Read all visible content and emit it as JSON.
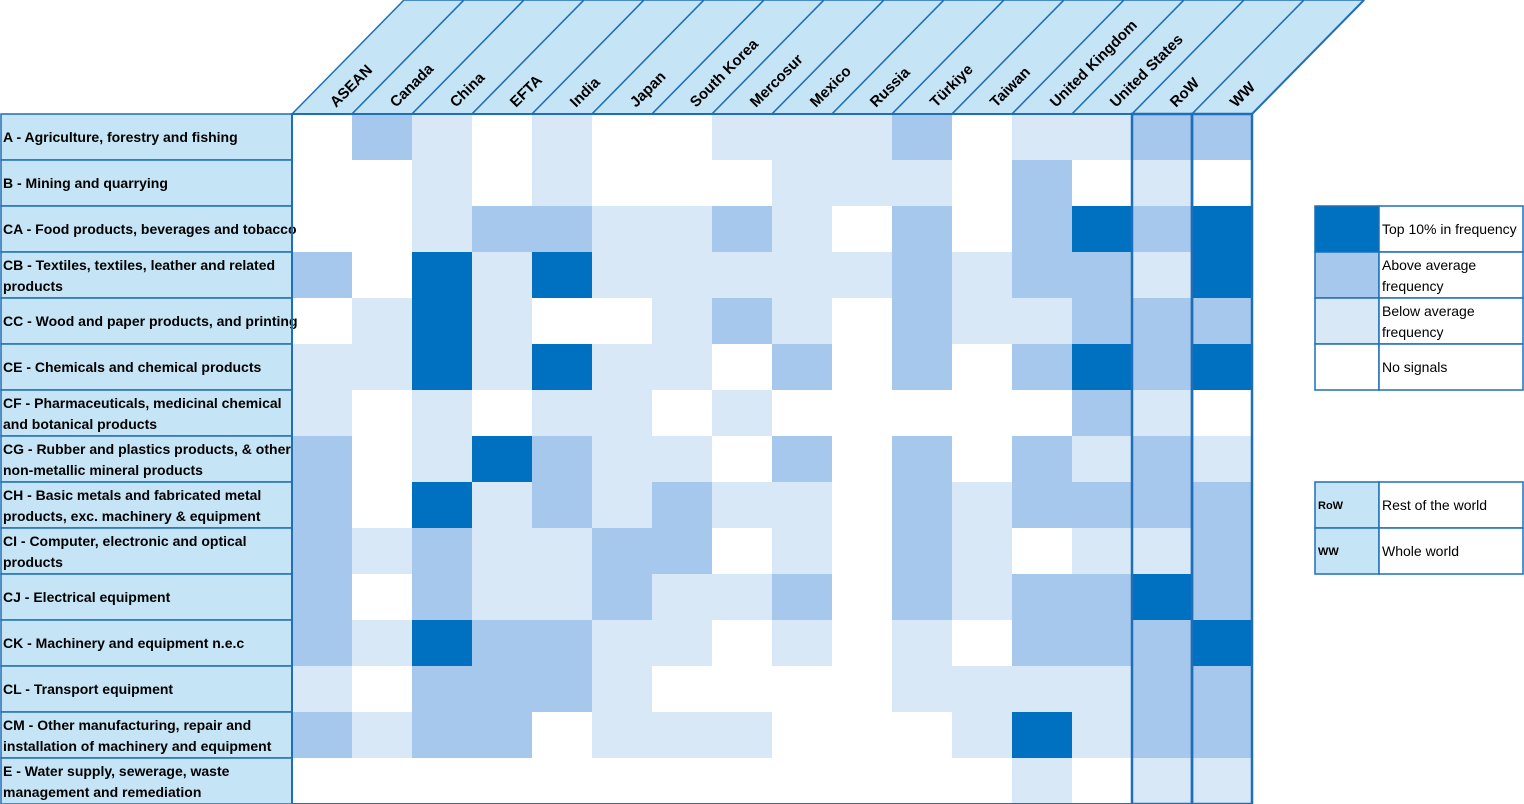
{
  "chart_data": {
    "type": "heatmap",
    "columns": [
      "ASEAN",
      "Canada",
      "China",
      "EFTA",
      "India",
      "Japan",
      "South Korea",
      "Mercosur",
      "Mexico",
      "Russia",
      "Türkiye",
      "Taiwan",
      "United Kingdom",
      "United States",
      "RoW",
      "WW"
    ],
    "rows": [
      {
        "label": [
          "A - Agriculture, forestry and fishing"
        ],
        "values": [
          0,
          2,
          1,
          0,
          1,
          0,
          0,
          1,
          1,
          1,
          2,
          0,
          1,
          1,
          2,
          2
        ]
      },
      {
        "label": [
          "B - Mining and quarrying"
        ],
        "values": [
          0,
          0,
          1,
          0,
          1,
          0,
          0,
          0,
          1,
          1,
          1,
          0,
          2,
          0,
          1,
          0
        ]
      },
      {
        "label": [
          "CA - Food products, beverages and tobacco"
        ],
        "values": [
          0,
          0,
          1,
          2,
          2,
          1,
          1,
          2,
          1,
          0,
          2,
          0,
          2,
          3,
          2,
          3
        ]
      },
      {
        "label": [
          "CB - Textiles, textiles, leather and related",
          "products"
        ],
        "values": [
          2,
          0,
          3,
          1,
          3,
          1,
          1,
          1,
          1,
          1,
          2,
          1,
          2,
          2,
          1,
          3
        ]
      },
      {
        "label": [
          "CC - Wood and paper products, and printing"
        ],
        "values": [
          0,
          1,
          3,
          1,
          0,
          0,
          1,
          2,
          1,
          0,
          2,
          1,
          1,
          2,
          2,
          2
        ]
      },
      {
        "label": [
          "CE - Chemicals and chemical products"
        ],
        "values": [
          1,
          1,
          3,
          1,
          3,
          1,
          1,
          0,
          2,
          0,
          2,
          0,
          2,
          3,
          2,
          3
        ]
      },
      {
        "label": [
          "CF - Pharmaceuticals, medicinal chemical",
          "and botanical products"
        ],
        "values": [
          1,
          0,
          1,
          0,
          1,
          1,
          0,
          1,
          0,
          0,
          0,
          0,
          0,
          2,
          1,
          0
        ]
      },
      {
        "label": [
          "CG - Rubber and plastics products, & other",
          "non-metallic mineral products"
        ],
        "values": [
          2,
          0,
          1,
          3,
          2,
          1,
          1,
          0,
          2,
          0,
          2,
          0,
          2,
          1,
          2,
          1
        ]
      },
      {
        "label": [
          "CH - Basic metals and fabricated metal",
          "products, exc. machinery & equipment"
        ],
        "values": [
          2,
          0,
          3,
          1,
          2,
          1,
          2,
          1,
          1,
          0,
          2,
          1,
          2,
          2,
          2,
          2
        ]
      },
      {
        "label": [
          "CI - Computer, electronic and optical",
          "products"
        ],
        "values": [
          2,
          1,
          2,
          1,
          1,
          2,
          2,
          0,
          1,
          0,
          2,
          1,
          0,
          1,
          1,
          2
        ]
      },
      {
        "label": [
          "CJ - Electrical equipment"
        ],
        "values": [
          2,
          0,
          2,
          1,
          1,
          2,
          1,
          1,
          2,
          0,
          2,
          1,
          2,
          2,
          3,
          2
        ]
      },
      {
        "label": [
          "CK - Machinery and equipment n.e.c"
        ],
        "values": [
          2,
          1,
          3,
          2,
          2,
          1,
          1,
          0,
          1,
          0,
          1,
          0,
          2,
          2,
          2,
          3
        ]
      },
      {
        "label": [
          "CL - Transport equipment"
        ],
        "values": [
          1,
          0,
          2,
          2,
          2,
          1,
          0,
          0,
          0,
          0,
          1,
          1,
          1,
          1,
          2,
          2
        ]
      },
      {
        "label": [
          "CM - Other manufacturing, repair and",
          "installation of machinery and equipment"
        ],
        "values": [
          2,
          1,
          2,
          2,
          0,
          1,
          1,
          1,
          0,
          0,
          0,
          1,
          3,
          1,
          2,
          2
        ]
      },
      {
        "label": [
          "E - Water supply, sewerage, waste",
          "management and remediation"
        ],
        "values": [
          0,
          0,
          0,
          0,
          0,
          0,
          0,
          0,
          0,
          0,
          0,
          0,
          1,
          0,
          1,
          1
        ]
      }
    ],
    "levels": [
      {
        "value": 3,
        "label": [
          "Top 10% in frequency"
        ],
        "color": "#0070c0"
      },
      {
        "value": 2,
        "label": [
          "Above average",
          "frequency"
        ],
        "color": "#a6c8ec"
      },
      {
        "value": 1,
        "label": [
          "Below average",
          "frequency"
        ],
        "color": "#d9e8f7"
      },
      {
        "value": 0,
        "label": [
          "No signals"
        ],
        "color": "#ffffff"
      }
    ],
    "abbreviations": [
      {
        "code": "RoW",
        "label": "Rest of the world"
      },
      {
        "code": "WW",
        "label": "Whole world"
      }
    ]
  },
  "colors": {
    "border": "#1f6fb8",
    "header_fill": "#c5e4f5",
    "swatch_abbrev_fill": "#c5e4f5"
  }
}
